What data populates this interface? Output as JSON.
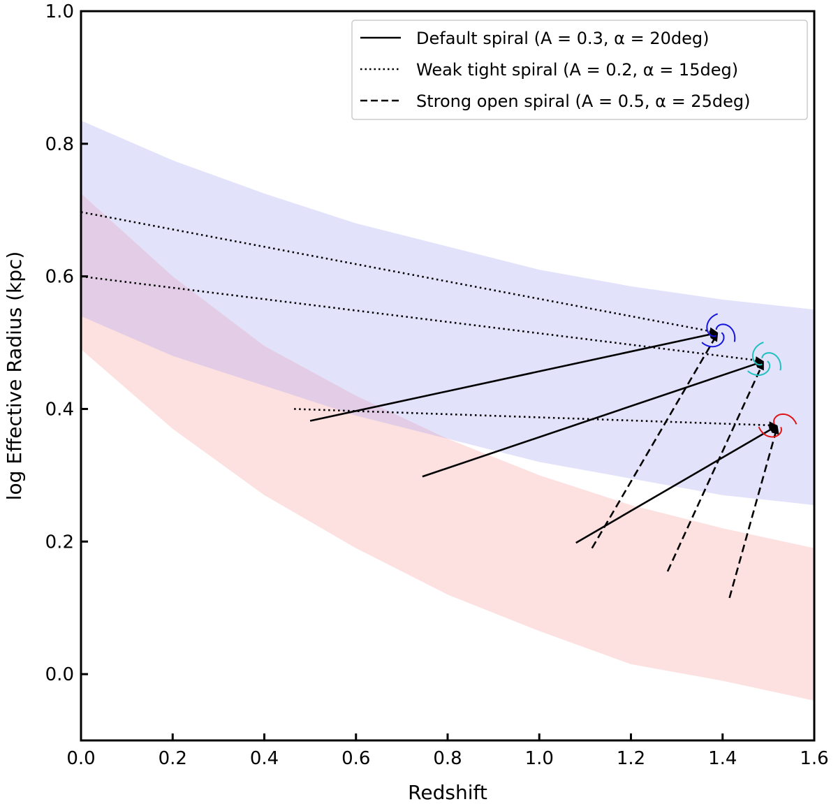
{
  "chart_data": {
    "type": "line",
    "title": "",
    "xlabel": "Redshift",
    "ylabel": "log Effective Radius (kpc)",
    "xlim": [
      0.0,
      1.6
    ],
    "ylim": [
      -0.1,
      1.0
    ],
    "xticks": [
      0.0,
      0.2,
      0.4,
      0.6,
      0.8,
      1.0,
      1.2,
      1.4,
      1.6
    ],
    "xtick_labels": [
      "0.0",
      "0.2",
      "0.4",
      "0.6",
      "0.8",
      "1.0",
      "1.2",
      "1.4",
      "1.6"
    ],
    "yticks": [
      0.0,
      0.2,
      0.4,
      0.6,
      0.8,
      1.0
    ],
    "ytick_labels": [
      "0.0",
      "0.2",
      "0.4",
      "0.6",
      "0.8",
      "1.0"
    ],
    "grid": false,
    "legend_position": "top-right",
    "legend": [
      {
        "style": "solid",
        "label": "Default spiral (A = 0.3, α = 20deg)"
      },
      {
        "style": "dotted",
        "label": "Weak tight spiral (A = 0.2, α = 15deg)"
      },
      {
        "style": "dashed",
        "label": "Strong open spiral (A = 0.5, α = 25deg)"
      }
    ],
    "bands": [
      {
        "name": "blue-band",
        "color": "#e2e2fb",
        "x": [
          0.0,
          0.2,
          0.4,
          0.6,
          0.8,
          1.0,
          1.2,
          1.4,
          1.6
        ],
        "upper": [
          0.835,
          0.775,
          0.725,
          0.68,
          0.645,
          0.61,
          0.585,
          0.565,
          0.55
        ],
        "lower": [
          0.54,
          0.48,
          0.435,
          0.39,
          0.355,
          0.32,
          0.295,
          0.27,
          0.255
        ]
      },
      {
        "name": "red-band",
        "color": "#fde0e0",
        "x": [
          0.0,
          0.2,
          0.4,
          0.6,
          0.8,
          1.0,
          1.2,
          1.4,
          1.6
        ],
        "upper": [
          0.725,
          0.6,
          0.495,
          0.42,
          0.355,
          0.3,
          0.255,
          0.22,
          0.19
        ],
        "lower": [
          0.49,
          0.37,
          0.27,
          0.19,
          0.12,
          0.065,
          0.015,
          -0.01,
          -0.04
        ]
      }
    ],
    "overlap_color": "#e3cde6",
    "targets": [
      {
        "name": "blue-galaxy",
        "x": 1.39,
        "y": 0.515,
        "color": "#1515e0"
      },
      {
        "name": "cyan-galaxy",
        "x": 1.49,
        "y": 0.472,
        "color": "#20c0c0"
      },
      {
        "name": "red-galaxy",
        "x": 1.52,
        "y": 0.375,
        "color": "#e01515"
      }
    ],
    "series": [
      {
        "name": "default-1",
        "style": "solid",
        "x": [
          0.5,
          1.39
        ],
        "y": [
          0.382,
          0.515
        ]
      },
      {
        "name": "default-2",
        "style": "solid",
        "x": [
          0.745,
          1.49
        ],
        "y": [
          0.298,
          0.472
        ]
      },
      {
        "name": "default-3",
        "style": "solid",
        "x": [
          1.08,
          1.52
        ],
        "y": [
          0.198,
          0.375
        ]
      },
      {
        "name": "weak-1",
        "style": "dotted",
        "x": [
          0.0,
          1.39
        ],
        "y": [
          0.697,
          0.515
        ]
      },
      {
        "name": "weak-2",
        "style": "dotted",
        "x": [
          0.0,
          1.49
        ],
        "y": [
          0.6,
          0.472
        ]
      },
      {
        "name": "weak-3",
        "style": "dotted",
        "x": [
          0.465,
          1.52
        ],
        "y": [
          0.4,
          0.375
        ]
      },
      {
        "name": "strong-1",
        "style": "dashed",
        "x": [
          1.115,
          1.39
        ],
        "y": [
          0.19,
          0.515
        ]
      },
      {
        "name": "strong-2",
        "style": "dashed",
        "x": [
          1.28,
          1.49
        ],
        "y": [
          0.155,
          0.472
        ]
      },
      {
        "name": "strong-3",
        "style": "dashed",
        "x": [
          1.415,
          1.52
        ],
        "y": [
          0.115,
          0.375
        ]
      }
    ]
  }
}
